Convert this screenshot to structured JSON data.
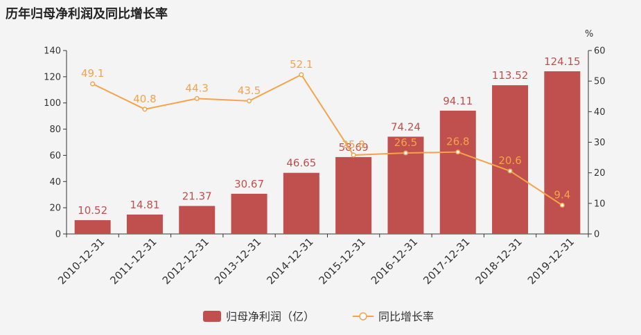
{
  "chart_data": {
    "type": "bar",
    "title": "历年归母净利润及同比增长率",
    "categories": [
      "2010-12-31",
      "2011-12-31",
      "2012-12-31",
      "2013-12-31",
      "2014-12-31",
      "2015-12-31",
      "2016-12-31",
      "2017-12-31",
      "2018-12-31",
      "2019-12-31"
    ],
    "series": [
      {
        "name": "归母净利润（亿）",
        "type": "bar",
        "axis": "left",
        "color": "#c0504d",
        "values": [
          10.52,
          14.81,
          21.37,
          30.67,
          46.65,
          58.69,
          74.24,
          94.11,
          113.52,
          124.15
        ],
        "labels": [
          "10.52",
          "14.81",
          "21.37",
          "30.67",
          "46.65",
          "58.69",
          "74.24",
          "94.11",
          "113.52",
          "124.15"
        ]
      },
      {
        "name": "同比增长率",
        "type": "line",
        "axis": "right",
        "color": "#f5a34a",
        "values": [
          49.1,
          40.8,
          44.3,
          43.5,
          52.1,
          25.8,
          26.5,
          26.8,
          20.6,
          9.4
        ],
        "labels": [
          "49.1",
          "40.8",
          "44.3",
          "43.5",
          "52.1",
          "25.8",
          "26.5",
          "26.8",
          "20.6",
          "9.4"
        ]
      }
    ],
    "y_left": {
      "ylim": [
        0,
        140
      ],
      "ticks": [
        "0",
        "20",
        "40",
        "60",
        "80",
        "100",
        "120",
        "140"
      ]
    },
    "y_right": {
      "ylim": [
        0,
        60
      ],
      "ticks": [
        "0",
        "10",
        "20",
        "30",
        "40",
        "50",
        "60"
      ],
      "unit": "%"
    },
    "grid": false,
    "legend_position": "bottom"
  }
}
